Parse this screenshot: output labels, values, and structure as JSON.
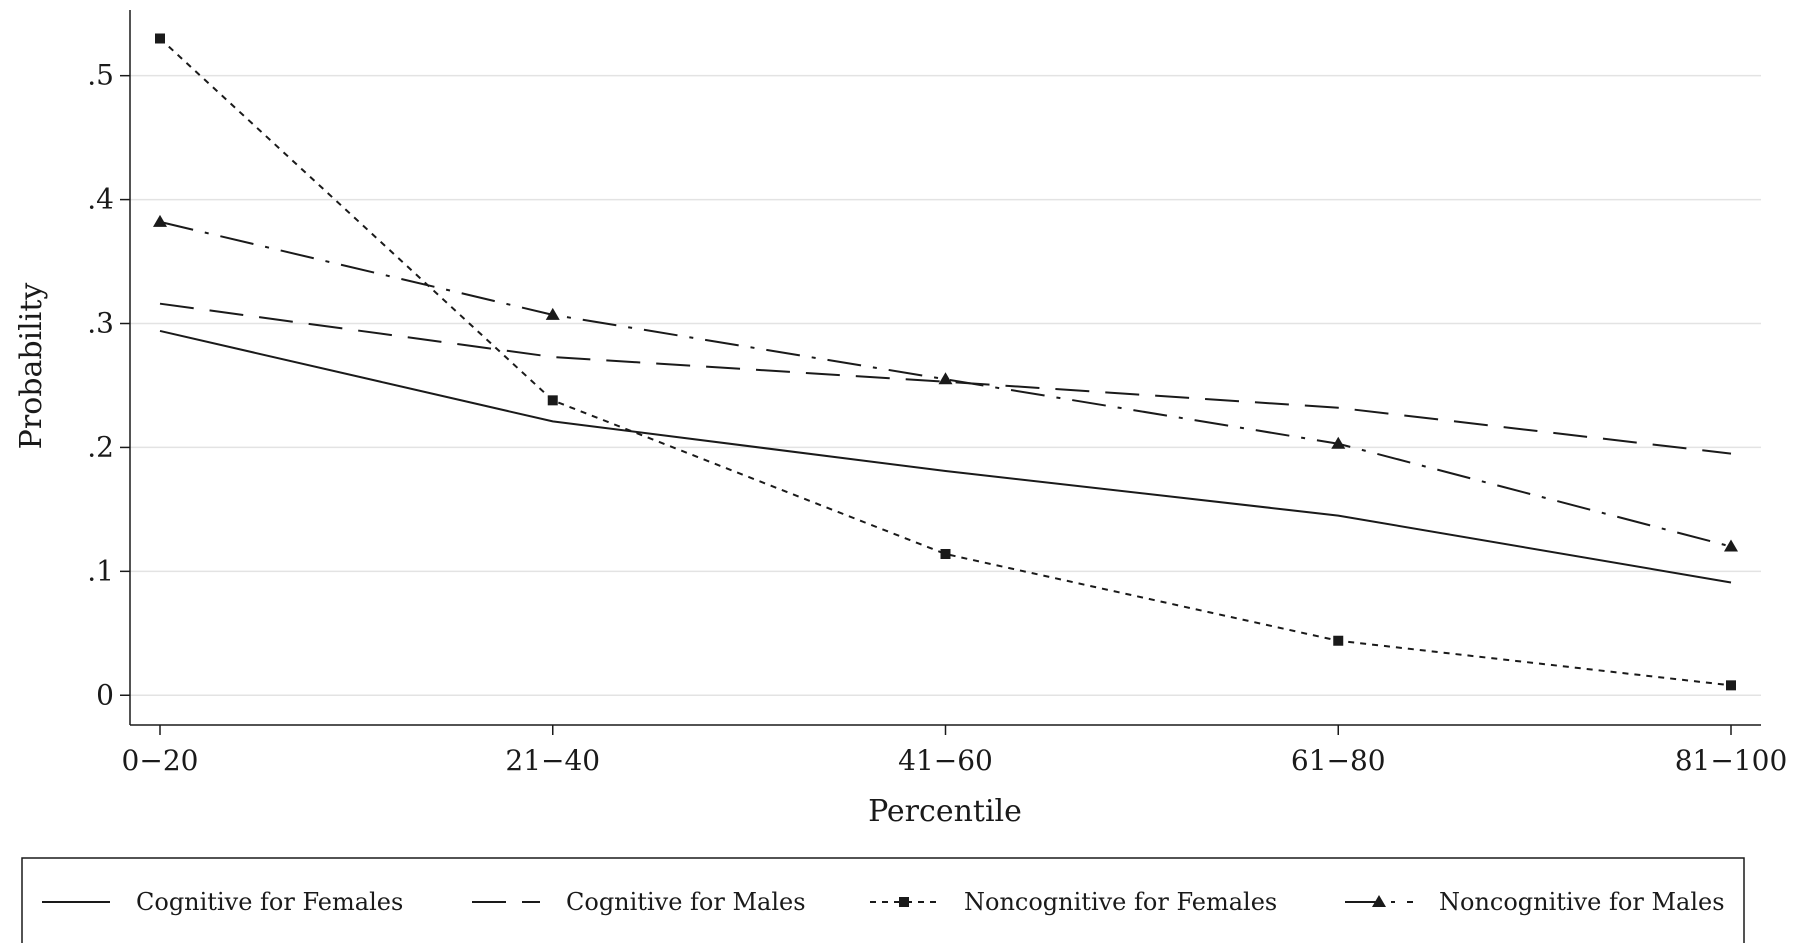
{
  "chart_data": {
    "type": "line",
    "title": "",
    "xlabel": "Percentile",
    "ylabel": "Probability",
    "categories": [
      "0−20",
      "21−40",
      "41−60",
      "61−80",
      "81−100"
    ],
    "y_ticks": [
      {
        "value": 0,
        "label": "0"
      },
      {
        "value": 0.1,
        "label": ".1"
      },
      {
        "value": 0.2,
        "label": ".2"
      },
      {
        "value": 0.3,
        "label": ".3"
      },
      {
        "value": 0.4,
        "label": ".4"
      },
      {
        "value": 0.5,
        "label": ".5"
      }
    ],
    "ylim": [
      -0.024,
      0.553
    ],
    "grid": true,
    "legend_position": "bottom",
    "series": [
      {
        "name": "Cognitive for Females",
        "values": [
          0.294,
          0.221,
          0.181,
          0.145,
          0.091
        ],
        "dash": "solid",
        "marker": "none"
      },
      {
        "name": "Cognitive for Males",
        "values": [
          0.316,
          0.273,
          0.253,
          0.232,
          0.195
        ],
        "dash": "longdash",
        "marker": "none"
      },
      {
        "name": "Noncognitive for Females",
        "values": [
          0.53,
          0.238,
          0.114,
          0.044,
          0.008
        ],
        "dash": "shortdash",
        "marker": "square"
      },
      {
        "name": "Noncognitive for Males",
        "values": [
          0.382,
          0.307,
          0.255,
          0.203,
          0.12
        ],
        "dash": "dashdot",
        "marker": "triangle"
      }
    ],
    "colors": {
      "line": "#1a1a1a",
      "grid": "#e3e3e3",
      "background": "#ffffff"
    }
  }
}
